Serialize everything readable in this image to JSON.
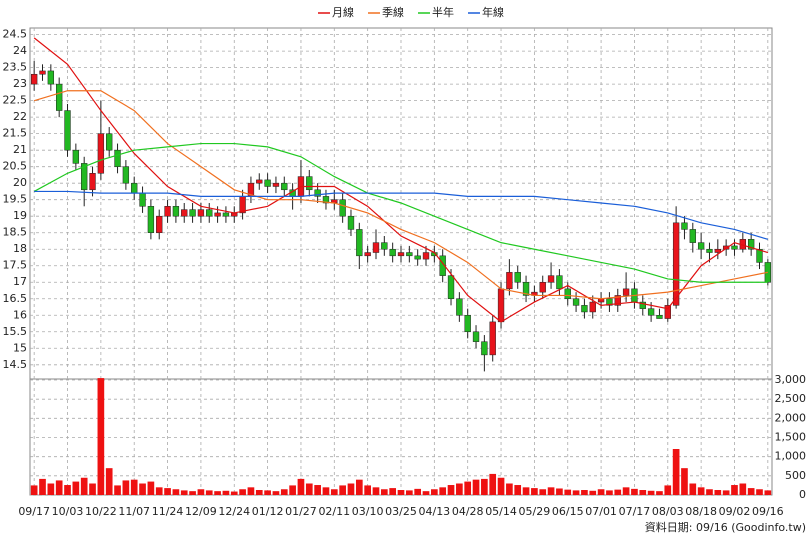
{
  "chart_data": [
    {
      "type": "candlestick",
      "categories": [
        "09/17",
        null,
        null,
        null,
        "10/03",
        null,
        null,
        null,
        "10/22",
        null,
        null,
        null,
        "11/07",
        null,
        null,
        null,
        "11/24",
        null,
        null,
        null,
        "12/09",
        null,
        null,
        null,
        "12/24",
        null,
        null,
        null,
        "01/12",
        null,
        null,
        null,
        "01/27",
        null,
        null,
        null,
        "02/11",
        null,
        null,
        null,
        "03/10",
        null,
        null,
        null,
        "03/25",
        null,
        null,
        null,
        "04/13",
        null,
        null,
        null,
        "04/28",
        null,
        null,
        null,
        "05/14",
        null,
        null,
        null,
        "05/29",
        null,
        null,
        null,
        "06/15",
        null,
        null,
        null,
        "07/01",
        null,
        null,
        null,
        "07/17",
        null,
        null,
        null,
        "08/03",
        null,
        null,
        null,
        "08/18",
        null,
        null,
        null,
        "09/02",
        null,
        null,
        null,
        "09/16"
      ],
      "open": [
        23.0,
        23.3,
        23.4,
        23.0,
        22.2,
        21.0,
        20.6,
        19.8,
        20.3,
        21.5,
        21.0,
        20.5,
        20.0,
        19.7,
        19.3,
        18.5,
        19.0,
        19.3,
        19.0,
        19.2,
        19.0,
        19.2,
        19.0,
        19.1,
        19.0,
        19.1,
        19.6,
        20.0,
        20.1,
        19.9,
        20.0,
        19.8,
        19.6,
        20.2,
        19.8,
        19.6,
        19.4,
        19.5,
        19.0,
        18.6,
        17.8,
        17.9,
        18.2,
        18.0,
        17.8,
        17.9,
        17.8,
        17.7,
        17.9,
        17.8,
        17.2,
        16.5,
        16.0,
        15.5,
        15.2,
        14.8,
        15.8,
        16.8,
        17.3,
        17.0,
        16.6,
        16.7,
        17.0,
        17.2,
        16.8,
        16.5,
        16.3,
        16.1,
        16.4,
        16.5,
        16.3,
        16.6,
        16.8,
        16.4,
        16.2,
        16.0,
        15.9,
        16.3,
        18.8,
        18.6,
        18.2,
        18.0,
        17.9,
        18.0,
        18.1,
        18.0,
        18.3,
        18.0,
        17.6
      ],
      "high": [
        23.7,
        23.6,
        23.6,
        23.2,
        22.4,
        21.2,
        20.8,
        20.5,
        22.5,
        21.7,
        21.2,
        20.7,
        20.2,
        19.9,
        19.5,
        19.2,
        19.5,
        19.5,
        19.4,
        19.4,
        19.4,
        19.4,
        19.3,
        19.3,
        19.3,
        19.8,
        20.2,
        20.3,
        20.3,
        20.2,
        20.2,
        20.0,
        20.7,
        20.4,
        20.0,
        19.8,
        19.8,
        19.7,
        19.2,
        18.8,
        18.1,
        18.6,
        18.4,
        18.2,
        18.1,
        18.1,
        18.0,
        18.1,
        18.1,
        18.0,
        17.4,
        16.7,
        16.2,
        15.7,
        15.4,
        16.0,
        17.0,
        17.7,
        17.5,
        17.2,
        16.9,
        17.2,
        17.6,
        17.4,
        17.0,
        16.7,
        16.5,
        16.6,
        16.7,
        16.7,
        16.8,
        17.3,
        17.0,
        16.6,
        16.4,
        16.2,
        16.5,
        19.3,
        19.0,
        18.8,
        18.5,
        18.2,
        18.3,
        18.3,
        18.3,
        18.5,
        18.5,
        18.2,
        17.7
      ],
      "low": [
        22.8,
        23.1,
        22.8,
        22.0,
        20.8,
        20.4,
        19.3,
        19.6,
        20.1,
        20.8,
        20.3,
        19.8,
        19.5,
        19.1,
        18.3,
        18.3,
        18.8,
        18.8,
        18.8,
        18.8,
        18.8,
        18.8,
        18.8,
        18.8,
        18.8,
        18.9,
        19.4,
        19.8,
        19.7,
        19.7,
        19.6,
        19.2,
        19.4,
        19.6,
        19.4,
        19.2,
        19.2,
        18.8,
        18.4,
        17.4,
        17.6,
        17.7,
        17.8,
        17.6,
        17.6,
        17.6,
        17.5,
        17.5,
        17.6,
        17.0,
        16.3,
        15.8,
        15.3,
        15.0,
        14.3,
        14.6,
        15.6,
        16.6,
        16.8,
        16.4,
        16.4,
        16.5,
        16.8,
        16.6,
        16.3,
        16.1,
        15.9,
        15.9,
        16.2,
        16.1,
        16.1,
        16.4,
        16.2,
        16.0,
        15.8,
        15.9,
        15.8,
        16.2,
        18.3,
        17.9,
        17.7,
        17.6,
        17.7,
        17.8,
        17.8,
        17.9,
        17.8,
        17.4,
        16.9
      ],
      "close": [
        23.3,
        23.4,
        23.0,
        22.2,
        21.0,
        20.6,
        19.8,
        20.3,
        21.5,
        21.0,
        20.5,
        20.0,
        19.7,
        19.3,
        18.5,
        19.0,
        19.3,
        19.0,
        19.2,
        19.0,
        19.2,
        19.0,
        19.1,
        19.0,
        19.1,
        19.6,
        20.0,
        20.1,
        19.9,
        20.0,
        19.8,
        19.6,
        20.2,
        19.8,
        19.6,
        19.4,
        19.5,
        19.0,
        18.6,
        17.8,
        17.9,
        18.2,
        18.0,
        17.8,
        17.9,
        17.8,
        17.7,
        17.9,
        17.8,
        17.2,
        16.5,
        16.0,
        15.5,
        15.2,
        14.8,
        15.8,
        16.8,
        17.3,
        17.0,
        16.6,
        16.7,
        17.0,
        17.2,
        16.8,
        16.5,
        16.3,
        16.1,
        16.4,
        16.5,
        16.3,
        16.6,
        16.8,
        16.4,
        16.2,
        16.0,
        15.9,
        16.3,
        18.8,
        18.6,
        18.2,
        18.0,
        17.9,
        18.0,
        18.1,
        18.0,
        18.3,
        18.0,
        17.6,
        17.0
      ],
      "up_color": "#e8141c",
      "down_color": "#22b822",
      "wick_color": "#222222",
      "lines": [
        {
          "name": "月線",
          "color": "#e01010",
          "x": [
            0,
            4,
            8,
            12,
            16,
            20,
            24,
            28,
            32,
            36,
            40,
            44,
            48,
            52,
            56,
            60,
            64,
            68,
            72,
            76,
            80,
            84,
            88
          ],
          "values": [
            24.4,
            23.6,
            22.2,
            20.9,
            19.9,
            19.3,
            19.1,
            19.3,
            19.9,
            19.9,
            19.3,
            18.4,
            17.9,
            16.6,
            15.8,
            16.4,
            16.9,
            16.3,
            16.4,
            16.2,
            17.5,
            18.2,
            17.9
          ]
        },
        {
          "name": "季線",
          "color": "#f07020",
          "x": [
            0,
            4,
            8,
            12,
            16,
            20,
            24,
            28,
            32,
            36,
            40,
            44,
            48,
            52,
            56,
            60,
            64,
            68,
            72,
            76,
            80,
            84,
            88
          ],
          "values": [
            22.5,
            22.8,
            22.8,
            22.2,
            21.2,
            20.5,
            19.8,
            19.5,
            19.5,
            19.4,
            19.1,
            18.6,
            18.2,
            17.6,
            16.8,
            16.6,
            16.6,
            16.5,
            16.6,
            16.7,
            16.9,
            17.1,
            17.3
          ]
        },
        {
          "name": "半年",
          "color": "#20c820",
          "x": [
            0,
            4,
            8,
            12,
            16,
            20,
            24,
            28,
            32,
            36,
            40,
            44,
            48,
            52,
            56,
            60,
            64,
            68,
            72,
            76,
            80,
            84,
            88
          ],
          "values": [
            19.75,
            20.3,
            20.7,
            21.0,
            21.1,
            21.2,
            21.2,
            21.1,
            20.8,
            20.2,
            19.7,
            19.4,
            19.0,
            18.6,
            18.2,
            18.0,
            17.8,
            17.6,
            17.4,
            17.1,
            17.0,
            17.0,
            17.0
          ]
        },
        {
          "name": "年線",
          "color": "#1a5ed8",
          "x": [
            0,
            4,
            8,
            12,
            16,
            20,
            24,
            28,
            32,
            36,
            40,
            44,
            48,
            52,
            56,
            60,
            64,
            68,
            72,
            76,
            80,
            84,
            88
          ],
          "values": [
            19.75,
            19.75,
            19.7,
            19.7,
            19.7,
            19.6,
            19.6,
            19.6,
            19.6,
            19.7,
            19.7,
            19.7,
            19.7,
            19.6,
            19.6,
            19.6,
            19.5,
            19.4,
            19.3,
            19.1,
            18.8,
            18.6,
            18.3
          ]
        }
      ],
      "ylim": [
        14.1,
        24.7
      ],
      "yticks": [
        14.5,
        15,
        15.5,
        16,
        16.5,
        17,
        17.5,
        18,
        18.5,
        19,
        19.5,
        20,
        20.5,
        21,
        21.5,
        22,
        22.5,
        23,
        23.5,
        24,
        24.5
      ],
      "grid": true
    },
    {
      "type": "bar",
      "values": [
        250,
        420,
        300,
        380,
        260,
        350,
        450,
        300,
        3050,
        700,
        250,
        380,
        400,
        300,
        350,
        200,
        180,
        150,
        120,
        100,
        150,
        120,
        100,
        110,
        90,
        150,
        200,
        130,
        120,
        100,
        150,
        250,
        420,
        300,
        260,
        200,
        150,
        250,
        300,
        400,
        250,
        200,
        150,
        180,
        130,
        120,
        160,
        100,
        150,
        200,
        260,
        300,
        350,
        400,
        420,
        550,
        450,
        300,
        260,
        200,
        180,
        150,
        200,
        170,
        140,
        120,
        130,
        110,
        150,
        120,
        140,
        200,
        160,
        130,
        110,
        100,
        250,
        1200,
        700,
        300,
        200,
        150,
        130,
        120,
        260,
        300,
        180,
        150,
        120
      ],
      "color": "#ee1111",
      "ylim": [
        0,
        3000
      ],
      "yticks": [
        0,
        500,
        {
          "value": 1000,
          "label": "1,000"
        },
        {
          "value": 1500,
          "label": "1,500"
        },
        {
          "value": 2000,
          "label": "2,000"
        },
        {
          "value": 2500,
          "label": "2,500"
        },
        {
          "value": 3000,
          "label": "3,000"
        }
      ],
      "grid": true,
      "source_note": "資料日期: 09/16 (Goodinfo.tw)"
    }
  ]
}
